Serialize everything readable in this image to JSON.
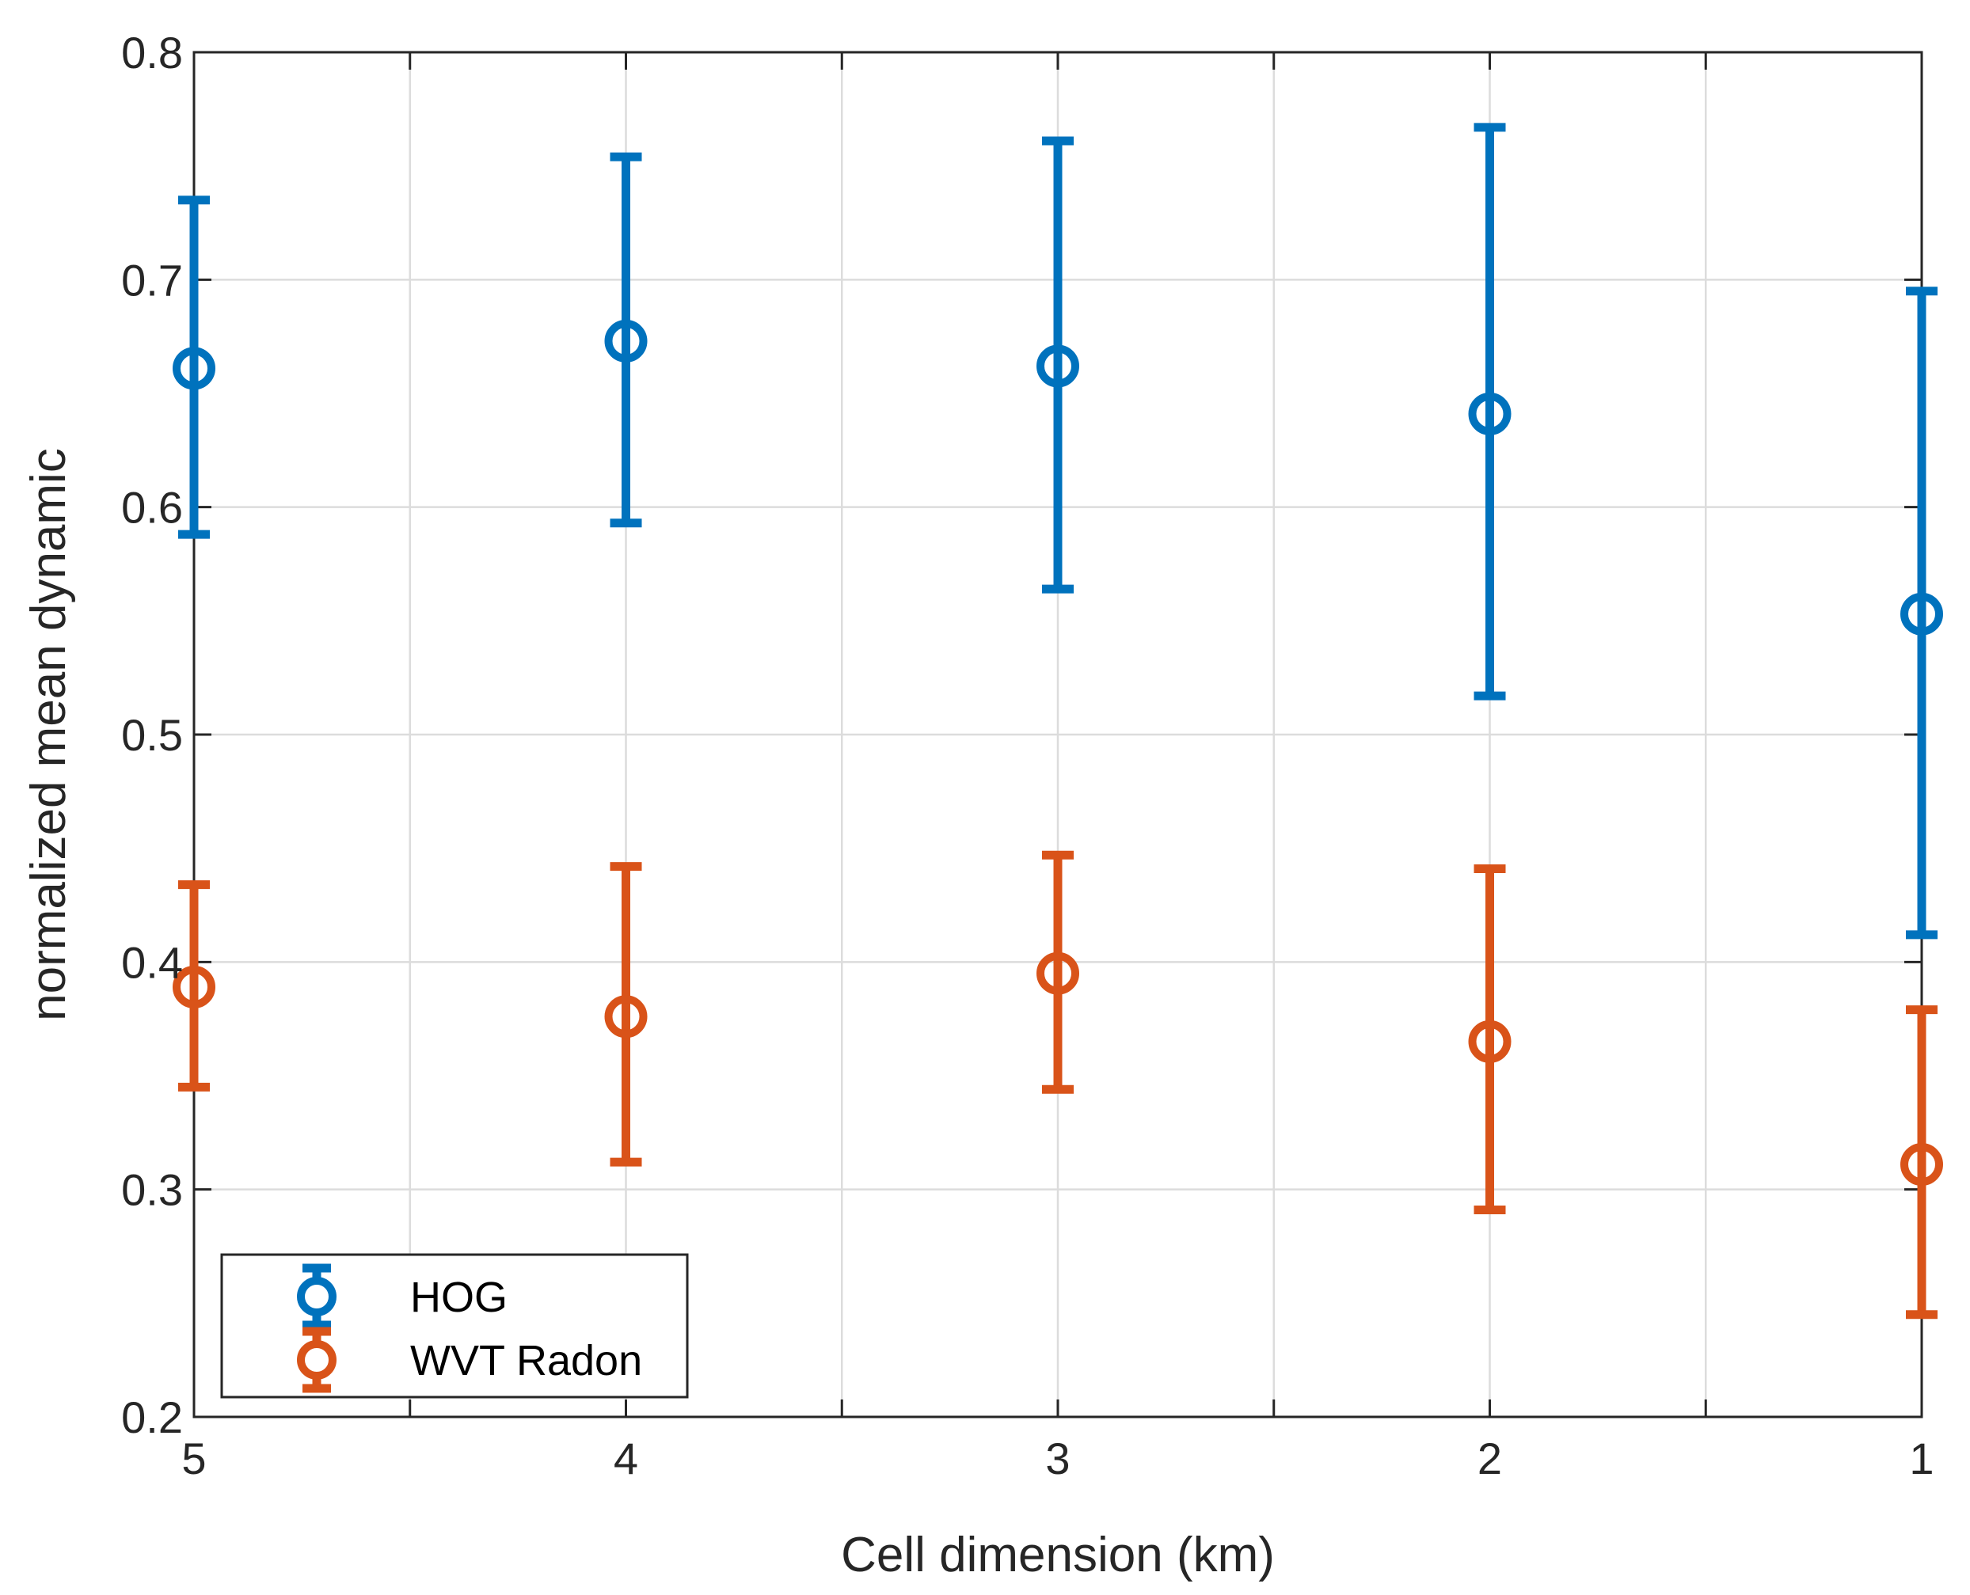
{
  "chart_data": {
    "type": "errorbar",
    "title": "",
    "xlabel": "Cell dimension (km)",
    "ylabel": "normalized mean dynamic",
    "xlim": [
      5,
      1
    ],
    "ylim": [
      0.2,
      0.8
    ],
    "x_direction": "reversed",
    "grid": true,
    "x_major_ticks": [
      5,
      4,
      3,
      2,
      1
    ],
    "x_minor_ticks": [
      4.5,
      3.5,
      2.5,
      1.5
    ],
    "x_tick_labels": [
      "5",
      "4",
      "3",
      "2",
      "1"
    ],
    "y_ticks": [
      0.2,
      0.3,
      0.4,
      0.5,
      0.6,
      0.7,
      0.8
    ],
    "y_tick_labels": [
      "0.2",
      "0.3",
      "0.4",
      "0.5",
      "0.6",
      "0.7",
      "0.8"
    ],
    "legend_position": "bottom-left",
    "series": [
      {
        "name": "HOG",
        "color": "#0072BD",
        "x": [
          5,
          4,
          3,
          2,
          1
        ],
        "y": [
          0.661,
          0.673,
          0.662,
          0.641,
          0.553
        ],
        "lower": [
          0.588,
          0.593,
          0.564,
          0.517,
          0.412
        ],
        "upper": [
          0.735,
          0.754,
          0.761,
          0.767,
          0.695
        ]
      },
      {
        "name": "WVT Radon",
        "color": "#D95319",
        "x": [
          5,
          4,
          3,
          2,
          1
        ],
        "y": [
          0.389,
          0.376,
          0.395,
          0.365,
          0.311
        ],
        "lower": [
          0.345,
          0.312,
          0.344,
          0.291,
          0.245
        ],
        "upper": [
          0.434,
          0.442,
          0.447,
          0.441,
          0.379
        ]
      }
    ]
  }
}
